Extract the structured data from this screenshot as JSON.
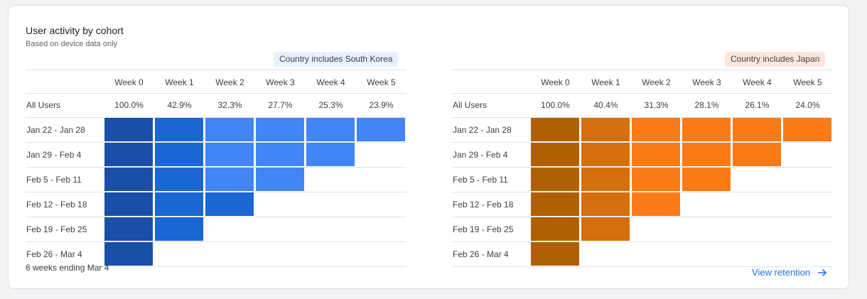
{
  "card": {
    "title": "User activity by cohort",
    "subtitle": "Based on device data only",
    "footnote": "6 weeks ending Mar 4",
    "view_link": "View retention"
  },
  "weeks": [
    "Week 0",
    "Week 1",
    "Week 2",
    "Week 3",
    "Week 4",
    "Week 5"
  ],
  "all_users_label": "All Users",
  "cohorts": [
    "Jan 22 - Jan 28",
    "Jan 29 - Feb 4",
    "Feb 5 - Feb 11",
    "Feb 12 - Feb 18",
    "Feb 19 - Feb 25",
    "Feb 26 - Mar 4"
  ],
  "panels": [
    {
      "filter_chip": "Country includes South Korea",
      "all_users_pct": [
        "100.0%",
        "42.9%",
        "32.3%",
        "27.7%",
        "25.3%",
        "23.9%"
      ],
      "palette": [
        "#1a4ea8",
        "#1967d2",
        "#4285f4"
      ]
    },
    {
      "filter_chip": "Country includes Japan",
      "all_users_pct": [
        "100.0%",
        "40.4%",
        "31.3%",
        "28.1%",
        "26.1%",
        "24.0%"
      ],
      "palette": [
        "#b06000",
        "#d56e0c",
        "#fa7b17"
      ]
    }
  ],
  "chart_data": [
    {
      "type": "heatmap",
      "title": "Country includes South Korea",
      "x": [
        "Week 0",
        "Week 1",
        "Week 2",
        "Week 3",
        "Week 4",
        "Week 5"
      ],
      "y": [
        "Jan 22 - Jan 28",
        "Jan 29 - Feb 4",
        "Feb 5 - Feb 11",
        "Feb 12 - Feb 18",
        "Feb 19 - Feb 25",
        "Feb 26 - Mar 4"
      ],
      "shade_levels": [
        [
          3,
          2,
          1,
          1,
          1,
          1
        ],
        [
          3,
          2,
          1,
          1,
          1
        ],
        [
          3,
          2,
          1,
          1
        ],
        [
          3,
          2,
          2
        ],
        [
          3,
          2
        ],
        [
          3
        ]
      ]
    },
    {
      "type": "heatmap",
      "title": "Country includes Japan",
      "x": [
        "Week 0",
        "Week 1",
        "Week 2",
        "Week 3",
        "Week 4",
        "Week 5"
      ],
      "y": [
        "Jan 22 - Jan 28",
        "Jan 29 - Feb 4",
        "Feb 5 - Feb 11",
        "Feb 12 - Feb 18",
        "Feb 19 - Feb 25",
        "Feb 26 - Mar 4"
      ],
      "shade_levels": [
        [
          3,
          2,
          1,
          1,
          1,
          1
        ],
        [
          3,
          2,
          1,
          1,
          1
        ],
        [
          3,
          2,
          1,
          1
        ],
        [
          3,
          2,
          1
        ],
        [
          3,
          2
        ],
        [
          3
        ]
      ]
    }
  ]
}
